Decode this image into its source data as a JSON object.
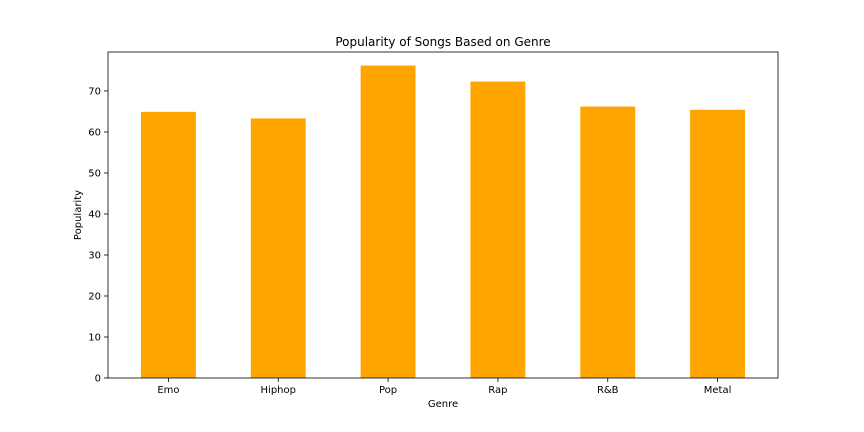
{
  "chart_data": {
    "type": "bar",
    "title": "Popularity of Songs Based on Genre",
    "xlabel": "Genre",
    "ylabel": "Popularity",
    "categories": [
      "Emo",
      "Hiphop",
      "Pop",
      "Rap",
      "R&B",
      "Metal"
    ],
    "values": [
      64.9,
      63.3,
      76.2,
      72.3,
      66.2,
      65.4
    ],
    "ylim": [
      0,
      79.5
    ],
    "yticks": [
      0,
      10,
      20,
      30,
      40,
      50,
      60,
      70
    ],
    "grid": false,
    "bar_color": "#ffa500",
    "axis_color": "#000000"
  }
}
